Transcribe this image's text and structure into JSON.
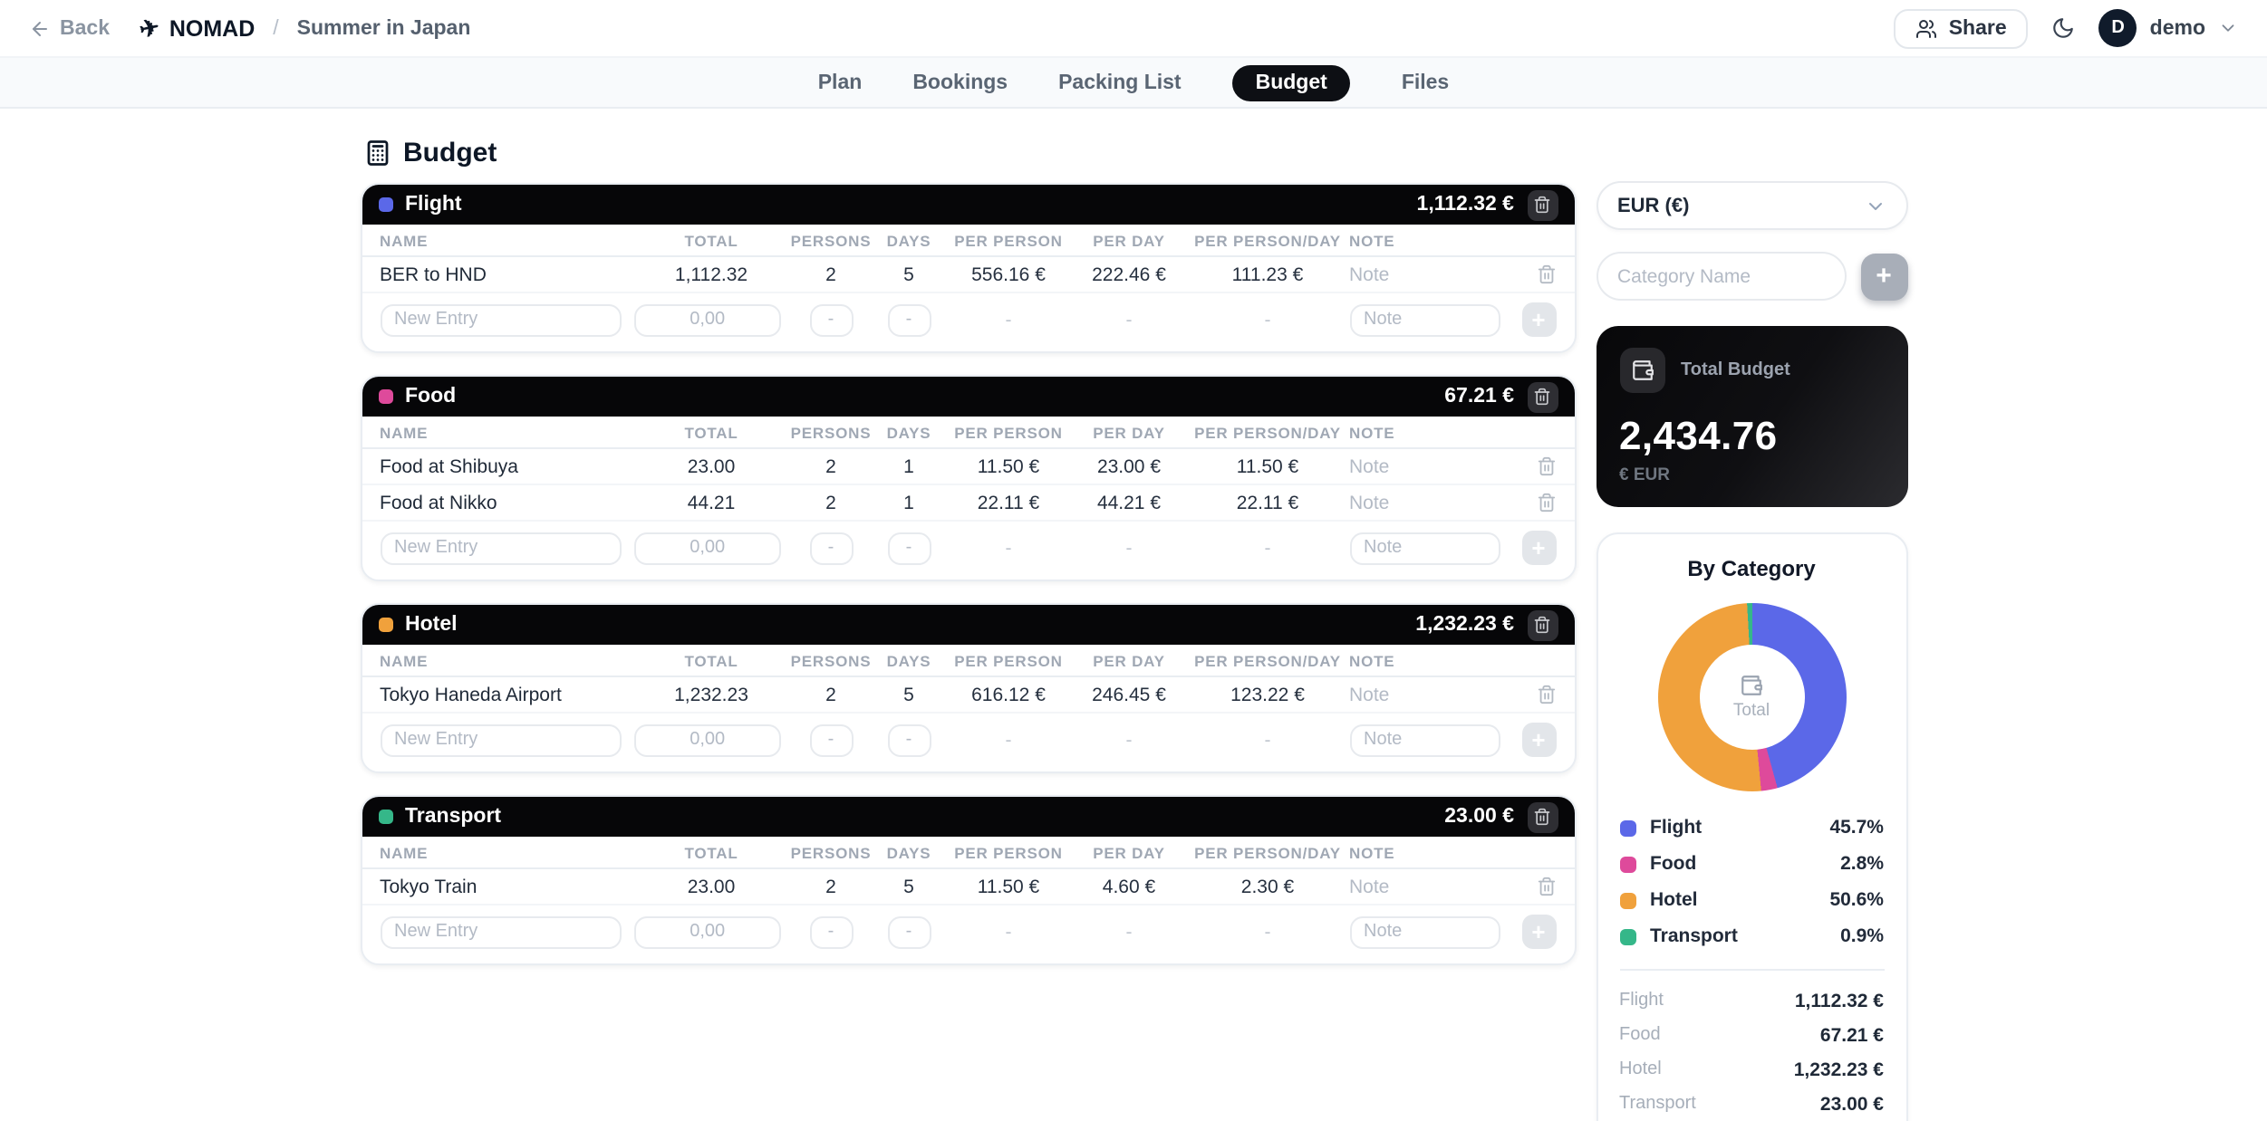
{
  "header": {
    "back_label": "Back",
    "brand": "NOMAD",
    "separator": "/",
    "trip_title": "Summer in Japan",
    "share_label": "Share",
    "avatar_initial": "D",
    "username": "demo"
  },
  "tabs": {
    "items": [
      "Plan",
      "Bookings",
      "Packing List",
      "Budget",
      "Files"
    ],
    "active": "Budget"
  },
  "page": {
    "title": "Budget"
  },
  "table": {
    "columns": [
      "NAME",
      "TOTAL",
      "PERSONS",
      "DAYS",
      "PER PERSON",
      "PER DAY",
      "PER PERSON/DAY",
      "NOTE"
    ],
    "note_placeholder": "Note"
  },
  "new_entry": {
    "name_placeholder": "New Entry",
    "total_placeholder": "0,00",
    "small_placeholder": "-",
    "dash": "-",
    "note_placeholder": "Note",
    "add_label": "+"
  },
  "categories": [
    {
      "name": "Flight",
      "color": "#5b68e8",
      "total_display": "1,112.32 €",
      "rows": [
        {
          "name": "BER to HND",
          "total": "1,112.32",
          "persons": "2",
          "days": "5",
          "per_person": "556.16 €",
          "per_day": "222.46 €",
          "per_person_day": "111.23 €"
        }
      ]
    },
    {
      "name": "Food",
      "color": "#de4a9b",
      "total_display": "67.21 €",
      "rows": [
        {
          "name": "Food at Shibuya",
          "total": "23.00",
          "persons": "2",
          "days": "1",
          "per_person": "11.50 €",
          "per_day": "23.00 €",
          "per_person_day": "11.50 €"
        },
        {
          "name": "Food at Nikko",
          "total": "44.21",
          "persons": "2",
          "days": "1",
          "per_person": "22.11 €",
          "per_day": "44.21 €",
          "per_person_day": "22.11 €"
        }
      ]
    },
    {
      "name": "Hotel",
      "color": "#f0a13c",
      "total_display": "1,232.23 €",
      "rows": [
        {
          "name": "Tokyo Haneda Airport",
          "total": "1,232.23",
          "persons": "2",
          "days": "5",
          "per_person": "616.12 €",
          "per_day": "246.45 €",
          "per_person_day": "123.22 €"
        }
      ]
    },
    {
      "name": "Transport",
      "color": "#35b789",
      "total_display": "23.00 €",
      "rows": [
        {
          "name": "Tokyo Train",
          "total": "23.00",
          "persons": "2",
          "days": "5",
          "per_person": "11.50 €",
          "per_day": "4.60 €",
          "per_person_day": "2.30 €"
        }
      ]
    }
  ],
  "sidebar": {
    "currency_selected": "EUR (€)",
    "category_placeholder": "Category Name",
    "add_label": "+",
    "total_budget": {
      "label": "Total Budget",
      "amount": "2,434.76",
      "currency": "€ EUR"
    }
  },
  "chart_data": {
    "type": "pie",
    "variant": "donut",
    "title": "By Category",
    "center_label": "Total",
    "categories": [
      "Flight",
      "Food",
      "Hotel",
      "Transport"
    ],
    "values": [
      1112.32,
      67.21,
      1232.23,
      23.0
    ],
    "percents": [
      45.7,
      2.8,
      50.6,
      0.9
    ],
    "percent_labels": [
      "45.7%",
      "2.8%",
      "50.6%",
      "0.9%"
    ],
    "amount_labels": [
      "1,112.32 €",
      "67.21 €",
      "1,232.23 €",
      "23.00 €"
    ],
    "colors": [
      "#5b68e8",
      "#de4a9b",
      "#f0a13c",
      "#35b789"
    ],
    "legend_position": "below",
    "start_angle_deg": 0,
    "direction": "clockwise"
  }
}
